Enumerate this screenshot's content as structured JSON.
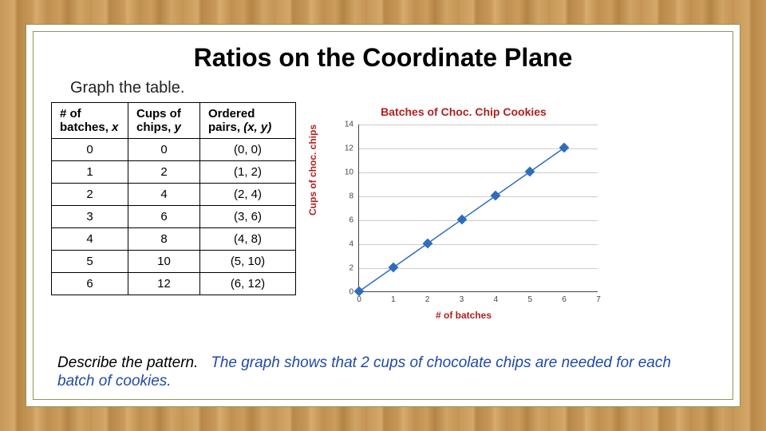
{
  "title": "Ratios on the Coordinate Plane",
  "subtitle": "Graph the table.",
  "table": {
    "headers": {
      "col1_a": "# of",
      "col1_b": "batches,",
      "col1_var": "x",
      "col2_a": "Cups of",
      "col2_b": "chips,",
      "col2_var": "y",
      "col3_a": "Ordered",
      "col3_b": "pairs,",
      "col3_var": "(x, y)"
    },
    "rows": [
      {
        "x": "0",
        "y": "0",
        "pair": "(0, 0)"
      },
      {
        "x": "1",
        "y": "2",
        "pair": "(1, 2)"
      },
      {
        "x": "2",
        "y": "4",
        "pair": "(2, 4)"
      },
      {
        "x": "3",
        "y": "6",
        "pair": "(3, 6)"
      },
      {
        "x": "4",
        "y": "8",
        "pair": "(4, 8)"
      },
      {
        "x": "5",
        "y": "10",
        "pair": "(5, 10)"
      },
      {
        "x": "6",
        "y": "12",
        "pair": "(6, 12)"
      }
    ]
  },
  "chart": {
    "type": "line-scatter",
    "title": "Batches of Choc. Chip Cookies",
    "xlabel": "# of batches",
    "ylabel": "Cups of choc. chips",
    "label_color": "#b02020",
    "xlim": [
      0,
      7
    ],
    "ylim": [
      0,
      14
    ],
    "xtick_step": 1,
    "ytick_step": 2,
    "grid_color": "#cccccc",
    "axis_color": "#444444",
    "line_color": "#2e6cc0",
    "marker_color": "#2e6cc0",
    "marker_shape": "diamond",
    "marker_size": 9,
    "points": [
      {
        "x": 0,
        "y": 0
      },
      {
        "x": 1,
        "y": 2
      },
      {
        "x": 2,
        "y": 4
      },
      {
        "x": 3,
        "y": 6
      },
      {
        "x": 4,
        "y": 8
      },
      {
        "x": 5,
        "y": 10
      },
      {
        "x": 6,
        "y": 12
      }
    ]
  },
  "footer": {
    "prompt": "Describe the pattern.",
    "answer": "The graph shows that 2 cups of chocolate chips are needed for each batch of cookies."
  }
}
